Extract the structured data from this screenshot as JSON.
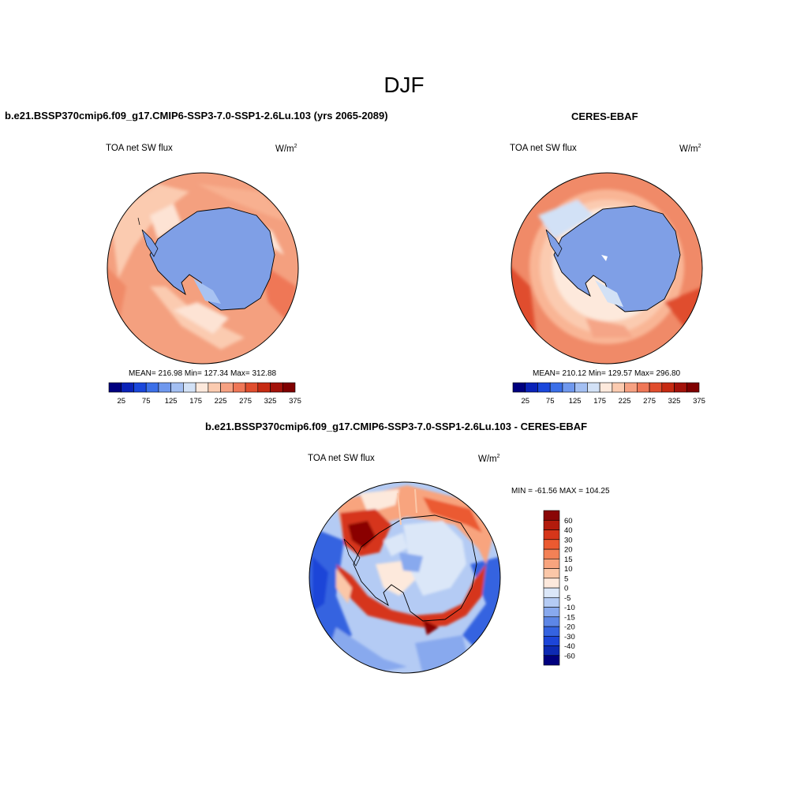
{
  "figure_title": "DJF",
  "panels": [
    {
      "title": "b.e21.BSSP370cmip6.f09_g17.CMIP6-SSP3-7.0-SSP1-2.6Lu.103 (yrs 2065-2089)",
      "variable": "TOA net SW flux",
      "units": "W/m",
      "units_sup": "2",
      "stats": "MEAN= 216.98  Min= 127.34  Max= 312.88"
    },
    {
      "title": "CERES-EBAF",
      "variable": "TOA net SW flux",
      "units": "W/m",
      "units_sup": "2",
      "stats": "MEAN= 210.12  Min= 129.57  Max= 296.80"
    },
    {
      "title": "b.e21.BSSP370cmip6.f09_g17.CMIP6-SSP3-7.0-SSP1-2.6Lu.103 - CERES-EBAF",
      "variable": "TOA net SW flux",
      "units": "W/m",
      "units_sup": "2",
      "stats": "MIN = -61.56 MAX = 104.25"
    }
  ],
  "colorbar_abs": {
    "colors": [
      "#00007f",
      "#0a22b8",
      "#1a47db",
      "#3b6fe8",
      "#6f98ee",
      "#a3bff2",
      "#d2e1f6",
      "#fde9dc",
      "#fbcbb0",
      "#f6a182",
      "#ef7757",
      "#e04d2d",
      "#c62a12",
      "#a3120a",
      "#7f0000"
    ],
    "tick_labels": [
      "25",
      "75",
      "125",
      "175",
      "225",
      "275",
      "325",
      "375"
    ]
  },
  "colorbar_diff": {
    "colors": [
      "#00007f",
      "#0d2ab3",
      "#1c45d8",
      "#3563e0",
      "#5d86e6",
      "#88a9ee",
      "#b4cbf4",
      "#dbe7f8",
      "#fde9dc",
      "#fbc7a8",
      "#f8a47e",
      "#f38156",
      "#eb5a30",
      "#d6361a",
      "#b31b0c",
      "#8a0606"
    ],
    "tick_labels": [
      "-60",
      "-40",
      "-30",
      "-20",
      "-15",
      "-10",
      "-5",
      "0",
      "5",
      "10",
      "15",
      "20",
      "30",
      "40",
      "60"
    ]
  }
}
